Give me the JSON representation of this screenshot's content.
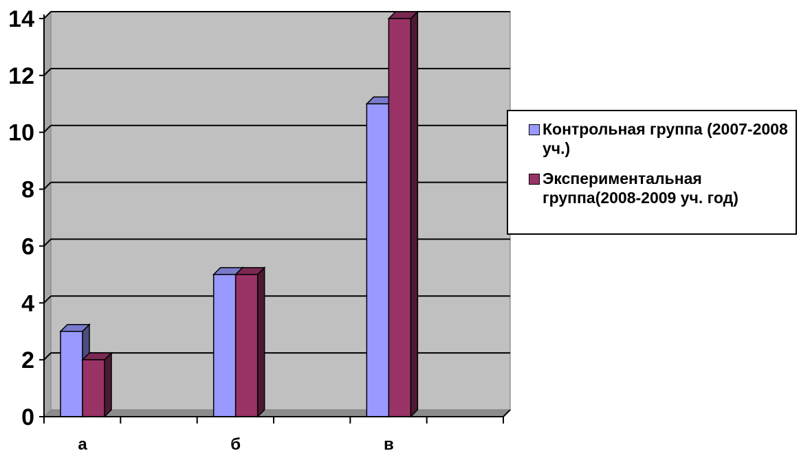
{
  "chart_data": {
    "type": "bar",
    "categories": [
      "а",
      "б",
      "в"
    ],
    "series": [
      {
        "name": "Контрольная группа (2007-2008 уч.)",
        "values": [
          3,
          5,
          11
        ],
        "color": "#9999ff"
      },
      {
        "name": "Экспериментальная группа(2008-2009 уч. год)",
        "values": [
          2,
          5,
          14
        ],
        "color": "#993366"
      }
    ],
    "ylim": [
      0,
      14
    ],
    "yticks": [
      0,
      2,
      4,
      6,
      8,
      10,
      12,
      14
    ],
    "grid": true,
    "legend_position": "right",
    "plot_background": "#c0c0c0"
  }
}
